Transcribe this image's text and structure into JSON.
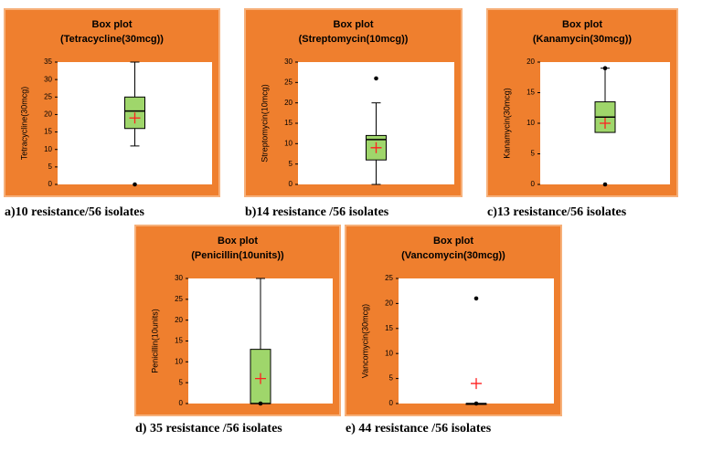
{
  "chart_data": [
    {
      "type": "box",
      "title": "Box plot",
      "subtitle": "(Tetracycline(30mcg))",
      "y_label": "Tetracycline(30mcg)",
      "caption": "a)10 resistance/56 isolates",
      "ylim": [
        0,
        35
      ],
      "yticks": [
        0,
        5,
        10,
        15,
        20,
        25,
        30,
        35
      ],
      "box": {
        "min": 11,
        "q1": 16,
        "median": 21,
        "q3": 25,
        "max": 35,
        "mean": 19,
        "outliers": [
          0
        ]
      }
    },
    {
      "type": "box",
      "title": "Box plot",
      "subtitle": "(Streptomycin(10mcg))",
      "y_label": "Streptomycin(10mcg)",
      "caption": "b)14 resistance /56 isolates",
      "ylim": [
        0,
        30
      ],
      "yticks": [
        0,
        5,
        10,
        15,
        20,
        25,
        30
      ],
      "box": {
        "min": 0,
        "q1": 6,
        "median": 11,
        "q3": 12,
        "max": 20,
        "mean": 9,
        "outliers": [
          26
        ]
      }
    },
    {
      "type": "box",
      "title": "Box plot",
      "subtitle": "(Kanamycin(30mcg))",
      "y_label": "Kanamycin(30mcg)",
      "caption": "c)13 resistance/56 isolates",
      "ylim": [
        0,
        20
      ],
      "yticks": [
        0,
        5,
        10,
        15,
        20
      ],
      "box": {
        "min": 8.5,
        "q1": 8.5,
        "median": 11,
        "q3": 13.5,
        "max": 19,
        "mean": 10,
        "outliers": [
          0,
          19
        ]
      }
    },
    {
      "type": "box",
      "title": "Box plot",
      "subtitle": "(Penicillin(10units))",
      "y_label": "Penicillin(10units)",
      "caption": "d) 35 resistance /56 isolates",
      "ylim": [
        0,
        30
      ],
      "yticks": [
        0,
        5,
        10,
        15,
        20,
        25,
        30
      ],
      "box": {
        "min": 0,
        "q1": 0,
        "median": 0,
        "q3": 13,
        "max": 30,
        "mean": 6,
        "outliers": [
          0
        ]
      }
    },
    {
      "type": "box",
      "title": "Box plot",
      "subtitle": "(Vancomycin(30mcg))",
      "y_label": "Vancomycin(30mcg)",
      "caption": "e) 44 resistance /56 isolates",
      "ylim": [
        0,
        25
      ],
      "yticks": [
        0,
        5,
        10,
        15,
        20,
        25
      ],
      "box": {
        "min": 0,
        "q1": 0,
        "median": 0,
        "q3": 0,
        "max": 0,
        "mean": 4,
        "outliers": [
          21,
          0
        ]
      }
    }
  ]
}
